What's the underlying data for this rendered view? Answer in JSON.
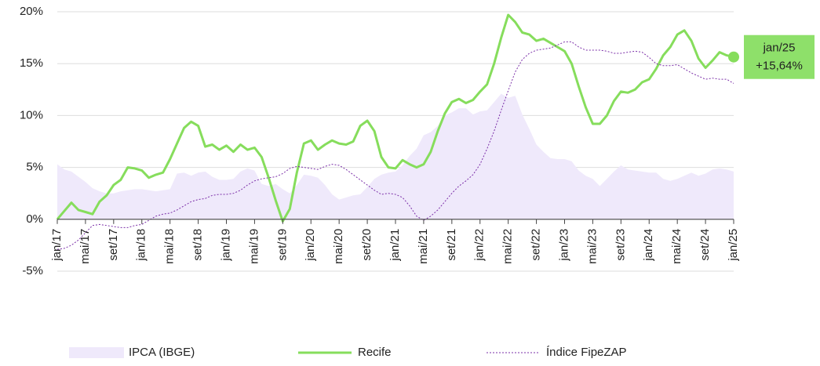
{
  "chart_data": {
    "type": "line",
    "categories": [
      "jan/17",
      null,
      null,
      null,
      "mai/17",
      null,
      null,
      null,
      "set/17",
      null,
      null,
      null,
      "jan/18",
      null,
      null,
      null,
      "mai/18",
      null,
      null,
      null,
      "set/18",
      null,
      null,
      null,
      "jan/19",
      null,
      null,
      null,
      "mai/19",
      null,
      null,
      null,
      "set/19",
      null,
      null,
      null,
      "jan/20",
      null,
      null,
      null,
      "mai/20",
      null,
      null,
      null,
      "set/20",
      null,
      null,
      null,
      "jan/21",
      null,
      null,
      null,
      "mai/21",
      null,
      null,
      null,
      "set/21",
      null,
      null,
      null,
      "jan/22",
      null,
      null,
      null,
      "mai/22",
      null,
      null,
      null,
      "set/22",
      null,
      null,
      null,
      "jan/23",
      null,
      null,
      null,
      "mai/23",
      null,
      null,
      null,
      "set/23",
      null,
      null,
      null,
      "jan/24",
      null,
      null,
      null,
      "mai/24",
      null,
      null,
      null,
      "set/24",
      null,
      null,
      null,
      "jan/25"
    ],
    "series": [
      {
        "name": "IPCA (IBGE)",
        "kind": "area",
        "color": "#efe9fb",
        "values": [
          5.3,
          4.8,
          4.6,
          4.1,
          3.6,
          3.0,
          2.7,
          2.5,
          2.5,
          2.7,
          2.8,
          2.9,
          2.9,
          2.8,
          2.7,
          2.8,
          2.9,
          4.4,
          4.5,
          4.2,
          4.5,
          4.6,
          4.1,
          3.8,
          3.8,
          3.9,
          4.6,
          4.9,
          4.7,
          3.4,
          3.2,
          3.4,
          2.9,
          2.5,
          3.3,
          4.3,
          4.2,
          4.0,
          3.3,
          2.4,
          1.9,
          2.1,
          2.3,
          2.4,
          3.1,
          3.9,
          4.3,
          4.5,
          4.6,
          5.2,
          6.1,
          6.8,
          8.1,
          8.4,
          9.0,
          10.0,
          10.3,
          10.7,
          10.7,
          10.1,
          10.4,
          10.5,
          11.3,
          12.1,
          11.7,
          11.9,
          10.1,
          8.7,
          7.2,
          6.5,
          5.9,
          5.8,
          5.8,
          5.6,
          4.7,
          4.2,
          3.9,
          3.2,
          3.9,
          4.6,
          5.2,
          4.8,
          4.7,
          4.6,
          4.5,
          4.5,
          3.9,
          3.7,
          3.9,
          4.2,
          4.5,
          4.2,
          4.4,
          4.8,
          4.9,
          4.8,
          4.6
        ]
      },
      {
        "name": "Recife",
        "kind": "line",
        "color": "#86dd5c",
        "values": [
          0,
          0.8,
          1.6,
          0.9,
          0.7,
          0.5,
          1.7,
          2.3,
          3.3,
          3.8,
          5.0,
          4.9,
          4.7,
          4.0,
          4.3,
          4.5,
          5.8,
          7.3,
          8.8,
          9.4,
          9.0,
          7.0,
          7.2,
          6.7,
          7.1,
          6.5,
          7.2,
          6.7,
          6.9,
          6.0,
          4.0,
          1.8,
          -0.2,
          1.0,
          4.5,
          7.3,
          7.6,
          6.7,
          7.2,
          7.6,
          7.3,
          7.2,
          7.5,
          9.0,
          9.5,
          8.5,
          6.0,
          5.0,
          4.9,
          5.7,
          5.3,
          5.0,
          5.3,
          6.5,
          8.5,
          10.2,
          11.3,
          11.6,
          11.2,
          11.5,
          12.3,
          13.0,
          15.0,
          17.5,
          19.7,
          19.0,
          18.0,
          17.8,
          17.2,
          17.4,
          17.0,
          16.6,
          16.2,
          15.0,
          12.8,
          10.8,
          9.2,
          9.2,
          10.0,
          11.4,
          12.3,
          12.2,
          12.5,
          13.2,
          13.5,
          14.5,
          15.8,
          16.6,
          17.8,
          18.2,
          17.2,
          15.5,
          14.6,
          15.3,
          16.1,
          15.8,
          15.64
        ]
      },
      {
        "name": "Índice FipeZAP",
        "kind": "dotted",
        "color": "#7b2fa8",
        "values": [
          -2.9,
          -2.8,
          -2.5,
          -2.0,
          -1.3,
          -0.6,
          -0.5,
          -0.6,
          -0.7,
          -0.8,
          -0.8,
          -0.6,
          -0.5,
          -0.1,
          0.3,
          0.5,
          0.6,
          0.9,
          1.3,
          1.7,
          1.9,
          2.0,
          2.3,
          2.4,
          2.4,
          2.5,
          2.8,
          3.3,
          3.7,
          3.9,
          4.0,
          4.1,
          4.4,
          4.9,
          5.1,
          5.0,
          4.9,
          4.8,
          5.1,
          5.3,
          5.2,
          4.8,
          4.3,
          3.8,
          3.3,
          2.8,
          2.4,
          2.5,
          2.4,
          2.1,
          1.3,
          0.3,
          -0.1,
          0.3,
          0.9,
          1.7,
          2.5,
          3.2,
          3.7,
          4.3,
          5.3,
          6.8,
          8.5,
          10.5,
          12.4,
          14.2,
          15.4,
          16.0,
          16.3,
          16.4,
          16.5,
          16.8,
          17.1,
          17.1,
          16.6,
          16.3,
          16.3,
          16.3,
          16.2,
          16.0,
          16.0,
          16.1,
          16.2,
          16.1,
          15.6,
          15.0,
          14.8,
          14.8,
          14.9,
          14.5,
          14.1,
          13.8,
          13.5,
          13.6,
          13.5,
          13.5,
          13.1
        ]
      }
    ],
    "annotation": {
      "text": "+15,64%",
      "value": 15.64,
      "color": "#8ee06a"
    },
    "ylim": [
      -5,
      20
    ],
    "yticks": [
      {
        "value": -5,
        "label": "-5%"
      },
      {
        "value": 0,
        "label": "0%"
      },
      {
        "value": 5,
        "label": "5%"
      },
      {
        "value": 10,
        "label": "10%"
      },
      {
        "value": 15,
        "label": "15%"
      },
      {
        "value": 20,
        "label": "20%"
      }
    ],
    "grid": true,
    "legend": "bottom"
  }
}
